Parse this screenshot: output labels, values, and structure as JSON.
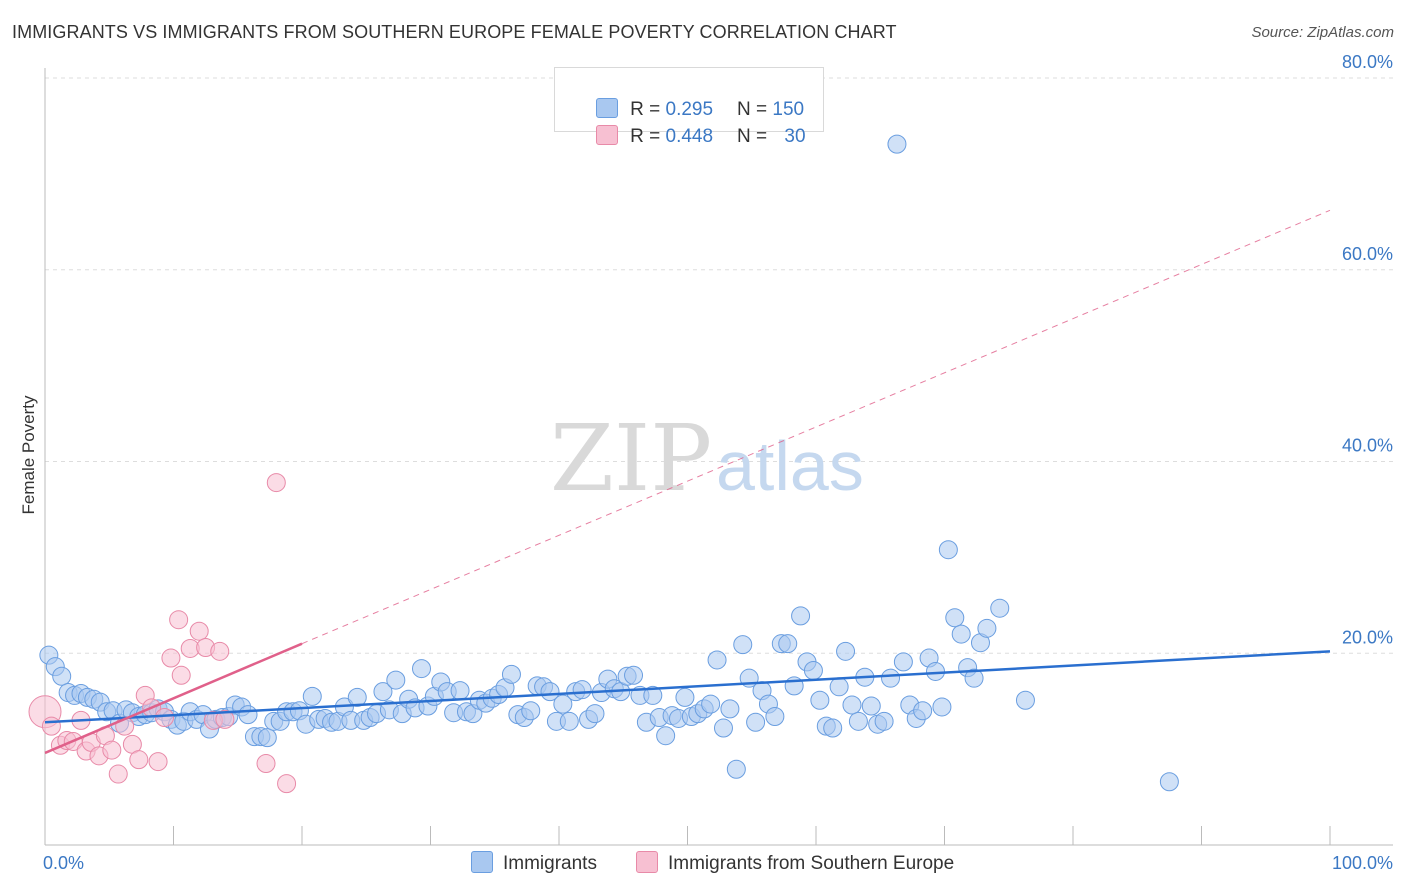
{
  "title": "IMMIGRANTS VS IMMIGRANTS FROM SOUTHERN EUROPE FEMALE POVERTY CORRELATION CHART",
  "source": "Source: ZipAtlas.com",
  "watermark": {
    "zip": "ZIP",
    "atlas": "atlas"
  },
  "legend": {
    "series1": {
      "r_label": "R = ",
      "r_value": "0.295",
      "n_label": "N = ",
      "n_value": "150"
    },
    "series2": {
      "r_label": "R = ",
      "r_value": "0.448",
      "n_label": "N = ",
      "n_value": "30"
    }
  },
  "colors": {
    "blue_fill": "#a9c8f0",
    "blue_stroke": "#6a9ee0",
    "blue_line": "#2a6fcf",
    "pink_fill": "#f7c0d2",
    "pink_stroke": "#e88aa8",
    "pink_line": "#e0608a",
    "tick_text": "#3b78c4",
    "grid": "#dddddd"
  },
  "chart_data": {
    "type": "scatter",
    "title": "IMMIGRANTS VS IMMIGRANTS FROM SOUTHERN EUROPE FEMALE POVERTY CORRELATION CHART",
    "xlabel": "",
    "ylabel": "Female Poverty",
    "xlim": [
      0,
      100
    ],
    "ylim": [
      0,
      80
    ],
    "x_tick_labels": [
      "0.0%",
      "100.0%"
    ],
    "y_ticks": [
      20,
      40,
      60,
      80
    ],
    "y_tick_labels": [
      "20.0%",
      "40.0%",
      "60.0%",
      "80.0%"
    ],
    "legend_position": "bottom",
    "series": [
      {
        "name": "Immigrants",
        "color": "#a9c8f0",
        "R": 0.295,
        "N": 150,
        "trend": {
          "x": [
            0,
            100
          ],
          "y": [
            12.8,
            20.2
          ],
          "style": "solid"
        },
        "points": [
          [
            0.3,
            19.8
          ],
          [
            0.8,
            18.6
          ],
          [
            1.3,
            17.6
          ],
          [
            1.8,
            15.9
          ],
          [
            2.3,
            15.6
          ],
          [
            2.8,
            15.8
          ],
          [
            3.3,
            15.4
          ],
          [
            3.8,
            15.2
          ],
          [
            4.3,
            14.9
          ],
          [
            4.8,
            13.9
          ],
          [
            5.3,
            14.0
          ],
          [
            5.8,
            12.7
          ],
          [
            6.3,
            14.1
          ],
          [
            6.8,
            13.8
          ],
          [
            7.3,
            13.4
          ],
          [
            7.8,
            13.6
          ],
          [
            8.3,
            13.8
          ],
          [
            8.8,
            14.2
          ],
          [
            9.3,
            13.9
          ],
          [
            9.8,
            13.1
          ],
          [
            10.3,
            12.5
          ],
          [
            10.8,
            12.9
          ],
          [
            11.3,
            13.9
          ],
          [
            11.8,
            13.1
          ],
          [
            12.3,
            13.6
          ],
          [
            12.8,
            12.1
          ],
          [
            13.3,
            13.1
          ],
          [
            13.8,
            13.3
          ],
          [
            14.3,
            13.4
          ],
          [
            14.8,
            14.6
          ],
          [
            15.3,
            14.4
          ],
          [
            15.8,
            13.6
          ],
          [
            16.3,
            11.3
          ],
          [
            16.8,
            11.3
          ],
          [
            17.3,
            11.2
          ],
          [
            17.8,
            12.9
          ],
          [
            18.3,
            12.9
          ],
          [
            18.8,
            13.9
          ],
          [
            19.3,
            13.9
          ],
          [
            19.8,
            14.0
          ],
          [
            20.3,
            12.6
          ],
          [
            20.8,
            15.5
          ],
          [
            21.3,
            13.1
          ],
          [
            21.8,
            13.2
          ],
          [
            22.3,
            12.8
          ],
          [
            22.8,
            12.9
          ],
          [
            23.3,
            14.4
          ],
          [
            23.8,
            13.0
          ],
          [
            24.3,
            15.4
          ],
          [
            24.8,
            13.0
          ],
          [
            25.3,
            13.3
          ],
          [
            25.8,
            13.7
          ],
          [
            26.3,
            16.0
          ],
          [
            26.8,
            14.1
          ],
          [
            27.3,
            17.2
          ],
          [
            27.8,
            13.7
          ],
          [
            28.3,
            15.2
          ],
          [
            28.8,
            14.3
          ],
          [
            29.3,
            18.4
          ],
          [
            29.8,
            14.5
          ],
          [
            30.3,
            15.5
          ],
          [
            30.8,
            17.0
          ],
          [
            31.3,
            16.0
          ],
          [
            31.8,
            13.8
          ],
          [
            32.3,
            16.1
          ],
          [
            32.8,
            13.9
          ],
          [
            33.3,
            13.7
          ],
          [
            33.8,
            15.1
          ],
          [
            34.3,
            14.8
          ],
          [
            34.8,
            15.3
          ],
          [
            35.3,
            15.7
          ],
          [
            35.8,
            16.4
          ],
          [
            36.3,
            17.8
          ],
          [
            36.8,
            13.6
          ],
          [
            37.3,
            13.3
          ],
          [
            37.8,
            14.0
          ],
          [
            38.3,
            16.6
          ],
          [
            38.8,
            16.5
          ],
          [
            39.3,
            16.0
          ],
          [
            39.8,
            12.9
          ],
          [
            40.3,
            14.7
          ],
          [
            40.8,
            12.9
          ],
          [
            41.3,
            16.0
          ],
          [
            41.8,
            16.2
          ],
          [
            42.3,
            13.1
          ],
          [
            42.8,
            13.7
          ],
          [
            43.3,
            15.9
          ],
          [
            43.8,
            17.3
          ],
          [
            44.3,
            16.3
          ],
          [
            44.8,
            16.0
          ],
          [
            45.3,
            17.6
          ],
          [
            45.8,
            17.7
          ],
          [
            46.3,
            15.6
          ],
          [
            46.8,
            12.8
          ],
          [
            47.3,
            15.6
          ],
          [
            47.8,
            13.3
          ],
          [
            48.3,
            11.4
          ],
          [
            48.8,
            13.5
          ],
          [
            49.3,
            13.2
          ],
          [
            49.8,
            15.4
          ],
          [
            50.3,
            13.4
          ],
          [
            50.8,
            13.7
          ],
          [
            51.3,
            14.2
          ],
          [
            51.8,
            14.7
          ],
          [
            52.3,
            19.3
          ],
          [
            52.8,
            12.2
          ],
          [
            53.3,
            14.2
          ],
          [
            53.8,
            7.9
          ],
          [
            54.3,
            20.9
          ],
          [
            54.8,
            17.4
          ],
          [
            55.3,
            12.8
          ],
          [
            55.8,
            16.1
          ],
          [
            56.3,
            14.7
          ],
          [
            56.8,
            13.4
          ],
          [
            57.3,
            21.0
          ],
          [
            57.8,
            21.0
          ],
          [
            58.3,
            16.6
          ],
          [
            58.8,
            23.9
          ],
          [
            59.3,
            19.1
          ],
          [
            59.8,
            18.2
          ],
          [
            60.3,
            15.1
          ],
          [
            60.8,
            12.4
          ],
          [
            61.3,
            12.2
          ],
          [
            61.8,
            16.5
          ],
          [
            62.3,
            20.2
          ],
          [
            62.8,
            14.6
          ],
          [
            63.3,
            12.9
          ],
          [
            63.8,
            17.5
          ],
          [
            64.3,
            14.5
          ],
          [
            64.8,
            12.6
          ],
          [
            65.3,
            12.9
          ],
          [
            65.8,
            17.4
          ],
          [
            66.3,
            73.1
          ],
          [
            66.8,
            19.1
          ],
          [
            67.3,
            14.6
          ],
          [
            67.8,
            13.2
          ],
          [
            68.3,
            14.0
          ],
          [
            68.8,
            19.5
          ],
          [
            69.3,
            18.1
          ],
          [
            69.8,
            14.4
          ],
          [
            70.3,
            30.8
          ],
          [
            70.8,
            23.7
          ],
          [
            71.3,
            22.0
          ],
          [
            71.8,
            18.5
          ],
          [
            72.3,
            17.4
          ],
          [
            72.8,
            21.1
          ],
          [
            73.3,
            22.6
          ],
          [
            74.3,
            24.7
          ],
          [
            76.3,
            15.1
          ],
          [
            87.5,
            6.6
          ]
        ]
      },
      {
        "name": "Immigrants from Southern Europe",
        "color": "#f7c0d2",
        "R": 0.448,
        "N": 30,
        "trend": {
          "x": [
            0,
            20
          ],
          "y": [
            9.6,
            21.0
          ],
          "style": "solid",
          "extended_dashed_to": {
            "x": 100,
            "y": 66.2
          }
        },
        "points": [
          [
            0.0,
            13.9
          ],
          [
            0.5,
            12.4
          ],
          [
            1.2,
            10.4
          ],
          [
            1.7,
            10.9
          ],
          [
            2.2,
            10.8
          ],
          [
            2.8,
            13.0
          ],
          [
            3.2,
            9.8
          ],
          [
            3.6,
            10.7
          ],
          [
            4.2,
            9.3
          ],
          [
            4.7,
            11.4
          ],
          [
            5.2,
            9.9
          ],
          [
            5.7,
            7.4
          ],
          [
            6.2,
            12.4
          ],
          [
            6.8,
            10.5
          ],
          [
            7.3,
            8.9
          ],
          [
            7.8,
            15.6
          ],
          [
            8.3,
            14.3
          ],
          [
            8.8,
            8.7
          ],
          [
            9.3,
            13.3
          ],
          [
            9.8,
            19.5
          ],
          [
            10.4,
            23.5
          ],
          [
            10.6,
            17.7
          ],
          [
            11.3,
            20.5
          ],
          [
            12.0,
            22.3
          ],
          [
            12.5,
            20.6
          ],
          [
            13.1,
            13.0
          ],
          [
            13.6,
            20.2
          ],
          [
            14.0,
            13.1
          ],
          [
            17.2,
            8.5
          ],
          [
            18.8,
            6.4
          ]
        ]
      }
    ],
    "extra_labeled_point": {
      "series": "Immigrants from Southern Europe",
      "x": 18.0,
      "y": 37.8
    }
  },
  "bottom_legend": {
    "item1": "Immigrants",
    "item2": "Immigrants from Southern Europe"
  }
}
